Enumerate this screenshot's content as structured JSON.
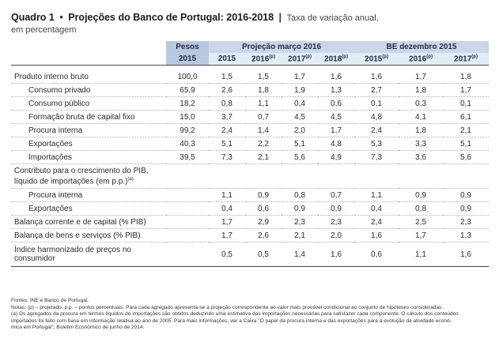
{
  "title": {
    "main": "Quadro 1",
    "bullet": "•",
    "heading": "Projeções do Banco de Portugal: 2016-2018",
    "sep": "|",
    "subtitle": "Taxa de variação anual,",
    "subtitle2": "em percentagem"
  },
  "header": {
    "groups": [
      "Pesos",
      "Projeção março 2016",
      "BE dezembro 2015"
    ],
    "years": [
      "2015",
      "2015",
      "2016",
      "2017",
      "2018",
      "2015",
      "2016",
      "2017"
    ],
    "year_marks": [
      "",
      "",
      "(p)",
      "(p)",
      "(p)",
      "(p)",
      "(p)",
      "(p)"
    ]
  },
  "rows": [
    {
      "label": "Produto interno bruto",
      "values": [
        "100,0",
        "1,5",
        "1,5",
        "1,7",
        "1,6",
        "1,6",
        "1,7",
        "1,8"
      ]
    },
    {
      "label": "Consumo privado",
      "values": [
        "65,9",
        "2,6",
        "1,8",
        "1,9",
        "1,3",
        "2,7",
        "1,8",
        "1,7"
      ]
    },
    {
      "label": "Consumo público",
      "values": [
        "18,2",
        "0,8",
        "1,1",
        "0,4",
        "0,6",
        "0,1",
        "0,3",
        "0,1"
      ]
    },
    {
      "label": "Formação bruta de capital fixo",
      "values": [
        "15,0",
        "3,7",
        "0,7",
        "4,5",
        "4,5",
        "4,8",
        "4,1",
        "6,1"
      ]
    },
    {
      "label": "Procura interna",
      "values": [
        "99,2",
        "2,4",
        "1,4",
        "2,0",
        "1,7",
        "2,4",
        "1,8",
        "2,1"
      ]
    },
    {
      "label": "Exportações",
      "values": [
        "40,3",
        "5,1",
        "2,2",
        "5,1",
        "4,8",
        "5,3",
        "3,3",
        "5,1"
      ]
    },
    {
      "label": "Importações",
      "values": [
        "39,5",
        "7,3",
        "2,1",
        "5,6",
        "4,9",
        "7,3",
        "3,6",
        "5,6"
      ]
    }
  ],
  "contrib": {
    "label": "Contributo para o crescimento do PIB,",
    "label2": "líquido de importações (em p.p.)",
    "mark": "(a)",
    "rows": [
      {
        "label": "Procura interna",
        "values": [
          "",
          "1,1",
          "0,9",
          "0,8",
          "0,7",
          "1,1",
          "0,9",
          "0,9"
        ]
      },
      {
        "label": "Exportações",
        "values": [
          "",
          "0,4",
          "0,6",
          "0,9",
          "0,9",
          "0,4",
          "0,8",
          "0,9"
        ]
      }
    ]
  },
  "balances": [
    {
      "label": "Balança corrente e de capital (% PIB)",
      "values": [
        "",
        "1,7",
        "2,9",
        "2,3",
        "2,3",
        "2,4",
        "2,5",
        "2,3"
      ]
    },
    {
      "label": "Balança de bens e serviços (% PIB)",
      "values": [
        "",
        "1,7",
        "2,6",
        "2,1",
        "2,0",
        "1,6",
        "1,7",
        "1,3"
      ]
    }
  ],
  "hicp": {
    "label": "Índice harmonizado de preços no",
    "label2": "consumidor",
    "values": [
      "",
      "0,5",
      "0,5",
      "1,4",
      "1,6",
      "0,6",
      "1,1",
      "1,6"
    ]
  },
  "notes": {
    "sources": "Fontes: INE e Banco de Portugal.",
    "notas": "Notas: (p) – projetado, p.p. – pontos percentuais. Para cada agregado apresenta-se a projeção correspondente ao valor mais provável condicional ao conjunto de hipóteses consideradas.",
    "a1": "(a) Os agregados da procura em termos líquidos de importações são obtidos deduzindo uma estimativa das importações necessárias para satisfazer cada componente. O cálculo dos conteúdos",
    "a2": "importados foi feito com base em informação relativa ao ano de 2005. Para mais informações, ver a Caixa \"O papel da procura interna e das exportações para a evolução da atividade econó-",
    "a3": "mica em Portugal\", Boletim Económico de junho de 2014."
  }
}
